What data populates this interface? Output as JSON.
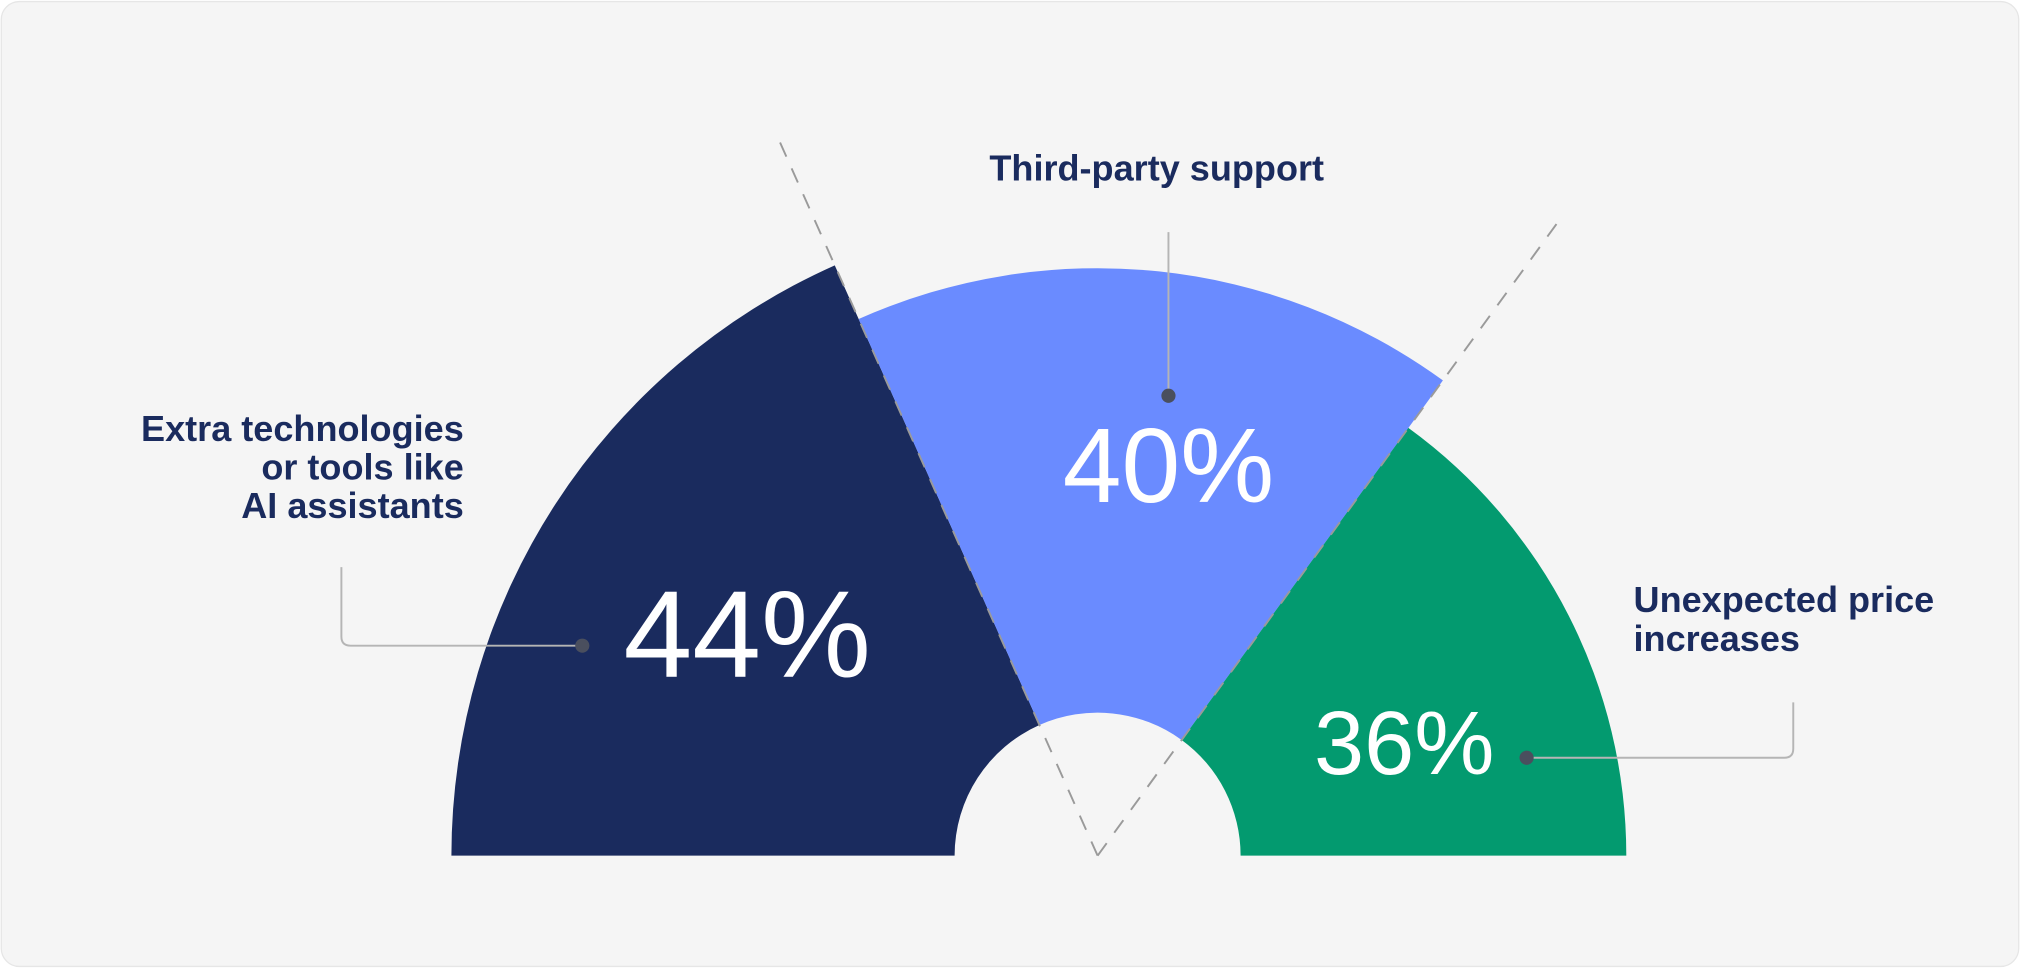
{
  "chart_data": {
    "type": "polar",
    "categories": [
      "Extra technologies\nor tools like\nAI assistants",
      "Third-party support",
      "Unexpected price\nincreases"
    ],
    "values": [
      44,
      40,
      36
    ],
    "value_labels": [
      "44%",
      "40%",
      "36%"
    ],
    "colors": [
      "#1a2b5e",
      "#6a8bff",
      "#039a6f"
    ]
  }
}
